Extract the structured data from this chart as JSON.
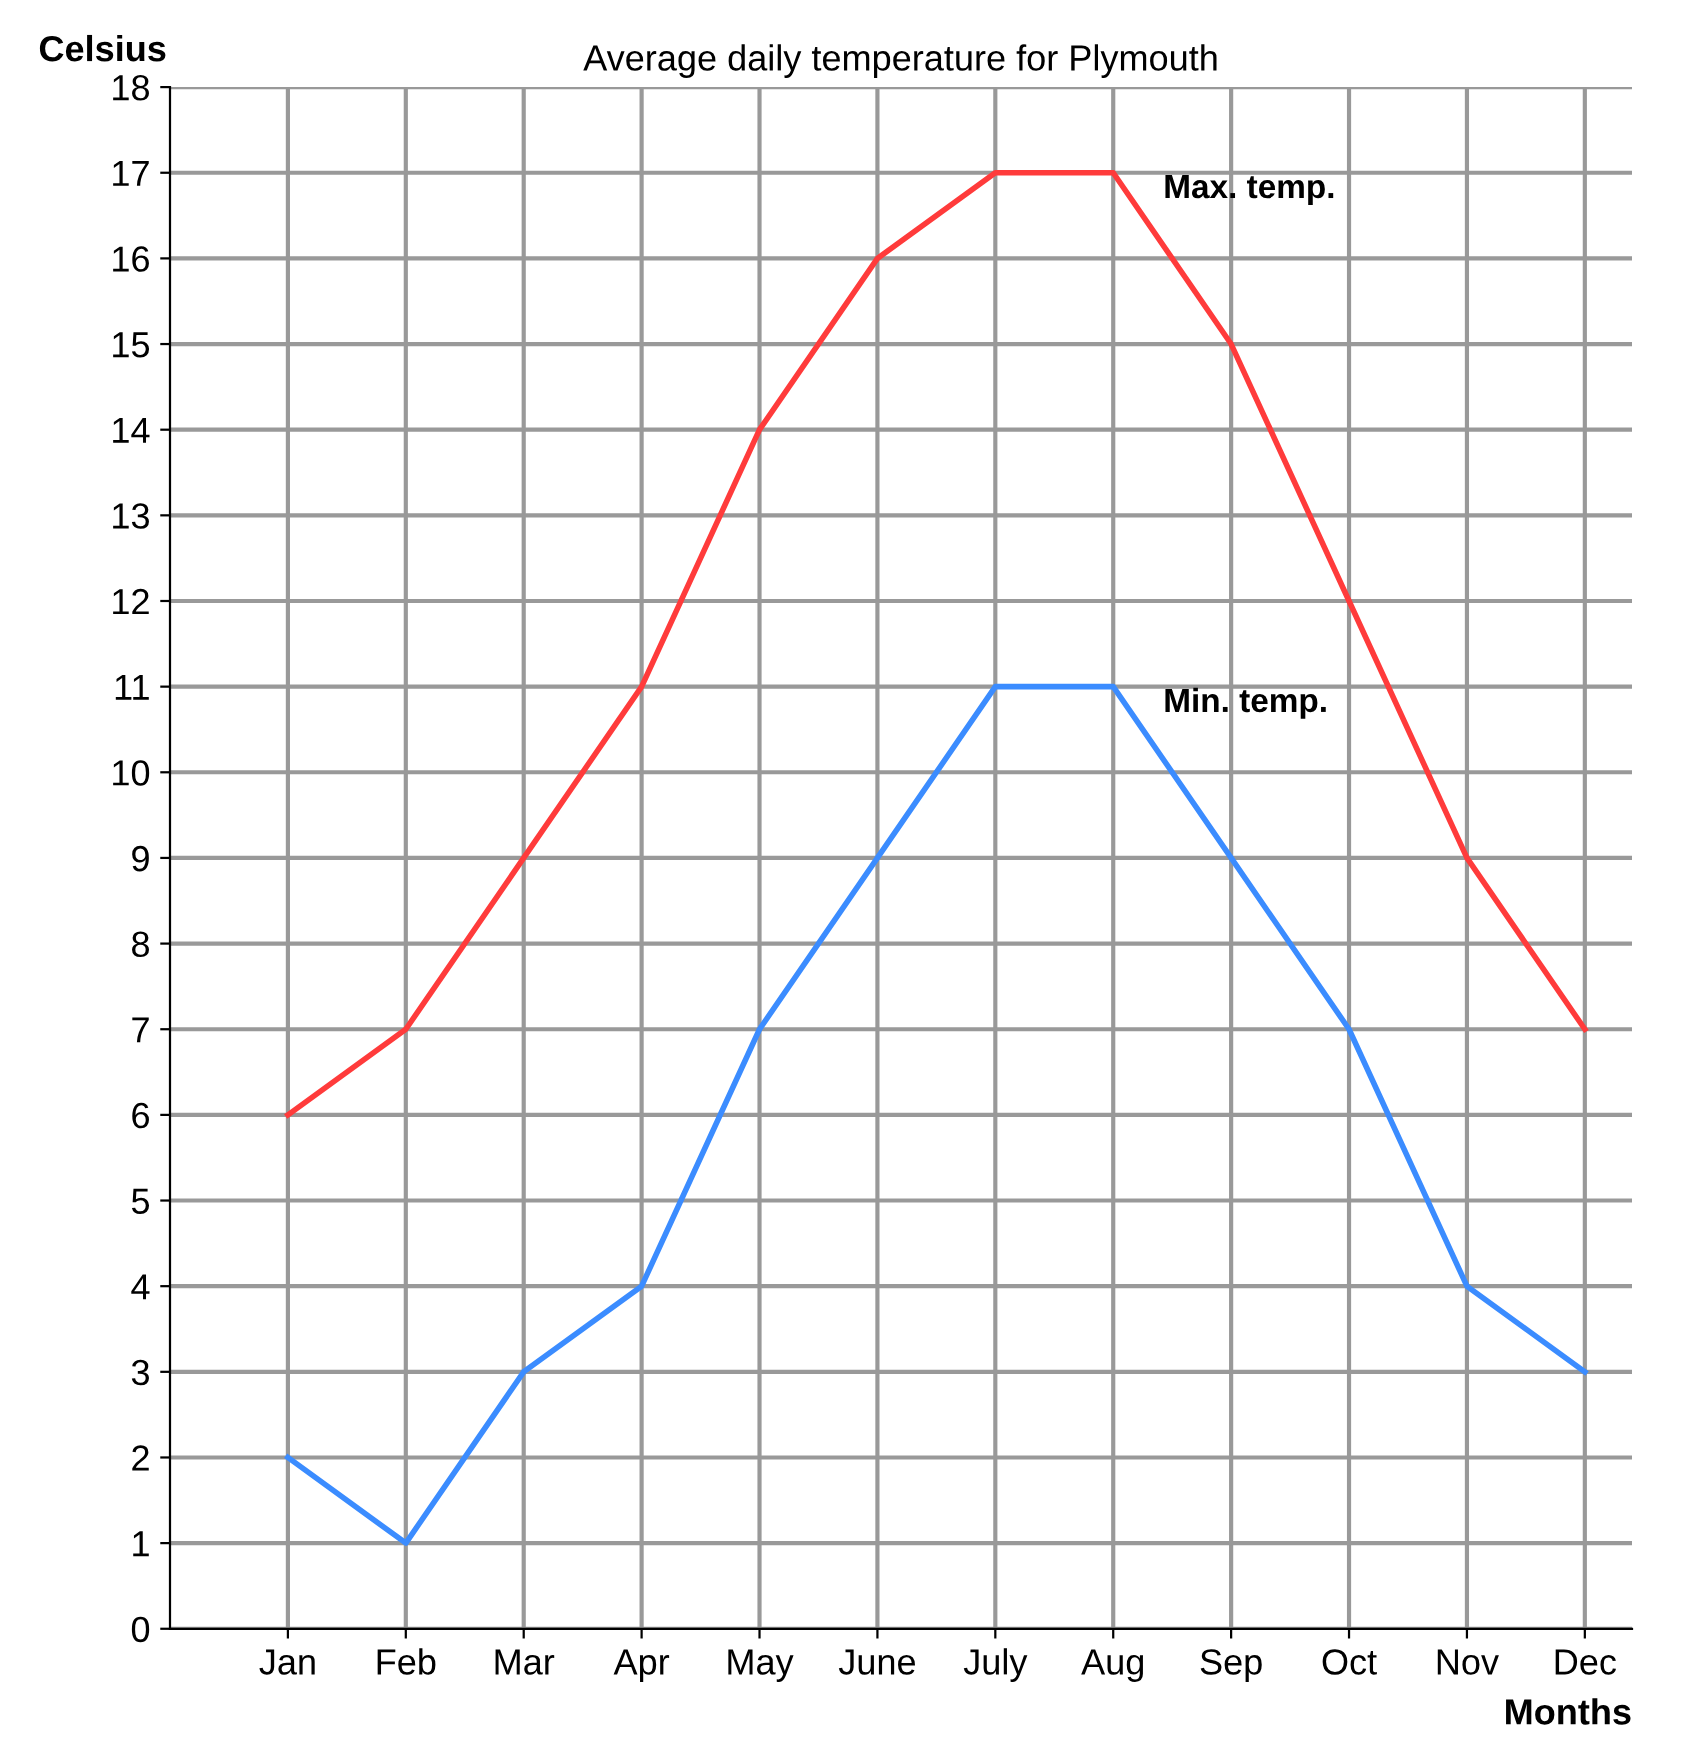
{
  "chart_data": {
    "type": "line",
    "title": "Average daily temperature for Plymouth",
    "ylabel": "Celsius",
    "xlabel": "Months",
    "categories": [
      "Jan",
      "Feb",
      "Mar",
      "Apr",
      "May",
      "June",
      "July",
      "Aug",
      "Sep",
      "Oct",
      "Nov",
      "Dec"
    ],
    "series": [
      {
        "name": "Max. temp.",
        "color": "#ff3b3b",
        "values": [
          6,
          7,
          9,
          11,
          14,
          16,
          17,
          17,
          15,
          12,
          9,
          7
        ]
      },
      {
        "name": "Min. temp.",
        "color": "#3b8cff",
        "values": [
          2,
          1,
          3,
          4,
          7,
          9,
          11,
          11,
          9,
          7,
          4,
          3
        ]
      }
    ],
    "ylim": [
      0,
      18
    ],
    "yticks": [
      0,
      1,
      2,
      3,
      4,
      5,
      6,
      7,
      8,
      9,
      10,
      11,
      12,
      13,
      14,
      15,
      16,
      17,
      18
    ],
    "grid": true,
    "marker": "none",
    "line_style": "solid"
  }
}
